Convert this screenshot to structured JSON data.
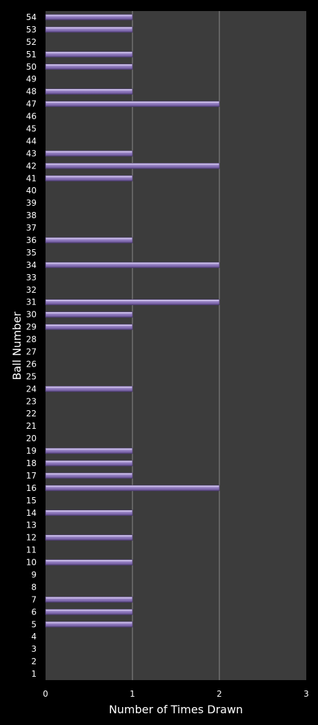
{
  "chart_data": {
    "type": "bar",
    "orientation": "horizontal",
    "title": "",
    "xlabel": "Number of Times Drawn",
    "ylabel": "Ball Number",
    "xlim": [
      0,
      3
    ],
    "xticks": [
      0,
      1,
      2,
      3
    ],
    "grid": "vertical",
    "legend": "none",
    "categories": [
      "1",
      "2",
      "3",
      "4",
      "5",
      "6",
      "7",
      "8",
      "9",
      "10",
      "11",
      "12",
      "13",
      "14",
      "15",
      "16",
      "17",
      "18",
      "19",
      "20",
      "21",
      "22",
      "23",
      "24",
      "25",
      "26",
      "27",
      "28",
      "29",
      "30",
      "31",
      "32",
      "33",
      "34",
      "35",
      "36",
      "37",
      "38",
      "39",
      "40",
      "41",
      "42",
      "43",
      "44",
      "45",
      "46",
      "47",
      "48",
      "49",
      "50",
      "51",
      "52",
      "53",
      "54"
    ],
    "values": [
      0,
      0,
      0,
      0,
      1,
      1,
      1,
      0,
      0,
      1,
      0,
      1,
      0,
      1,
      0,
      2,
      1,
      1,
      1,
      0,
      0,
      0,
      0,
      1,
      0,
      0,
      0,
      0,
      1,
      1,
      2,
      0,
      0,
      2,
      0,
      1,
      0,
      0,
      0,
      0,
      1,
      2,
      1,
      0,
      0,
      0,
      2,
      1,
      0,
      1,
      1,
      0,
      1,
      1
    ],
    "colors": {
      "background": "#000000",
      "plot_area": "#3c3c3c",
      "bar": "#8670b0",
      "bar_highlight": "#c9bce6",
      "bar_shadow": "#4a3a6e",
      "gridline": "#8a8a8a",
      "text": "#ffffff"
    }
  }
}
